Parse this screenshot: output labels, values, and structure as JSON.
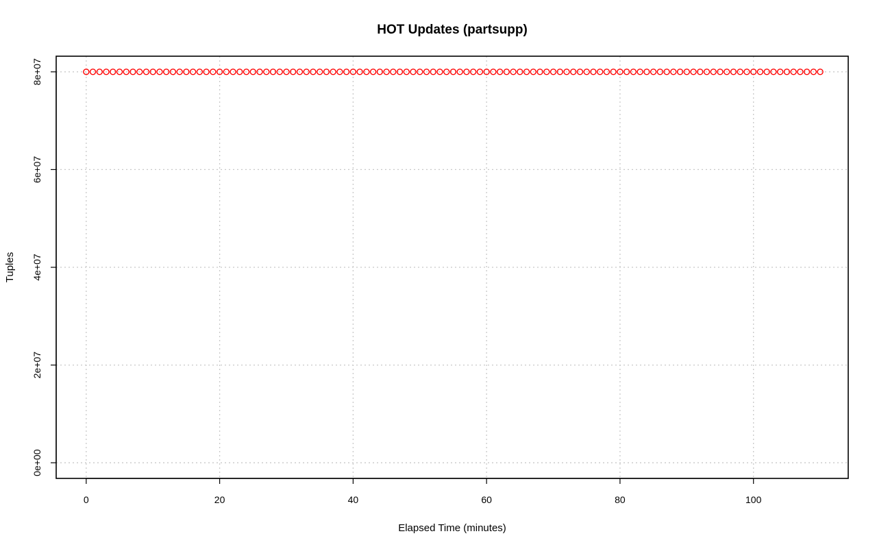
{
  "chart_data": {
    "type": "scatter",
    "title": "HOT Updates (partsupp)",
    "xlabel": "Elapsed Time (minutes)",
    "ylabel": "Tuples",
    "xlim": [
      -4.5,
      114.2
    ],
    "ylim": [
      -3200000,
      83200000
    ],
    "xticks": [
      0,
      20,
      40,
      60,
      80,
      100
    ],
    "xtick_labels": [
      "0",
      "20",
      "40",
      "60",
      "80",
      "100"
    ],
    "yticks": [
      0,
      20000000,
      40000000,
      60000000,
      80000000
    ],
    "ytick_labels": [
      "0e+00",
      "2e+07",
      "4e+07",
      "6e+07",
      "8e+07"
    ],
    "grid": true,
    "legend": "none",
    "marker": "open-circle",
    "color": "#ff0000",
    "series": [
      {
        "x": [
          0,
          1,
          2,
          3,
          4,
          5,
          6,
          7,
          8,
          9,
          10,
          11,
          12,
          13,
          14,
          15,
          16,
          17,
          18,
          19,
          20,
          21,
          22,
          23,
          24,
          25,
          26,
          27,
          28,
          29,
          30,
          31,
          32,
          33,
          34,
          35,
          36,
          37,
          38,
          39,
          40,
          41,
          42,
          43,
          44,
          45,
          46,
          47,
          48,
          49,
          50,
          51,
          52,
          53,
          54,
          55,
          56,
          57,
          58,
          59,
          60,
          61,
          62,
          63,
          64,
          65,
          66,
          67,
          68,
          69,
          70,
          71,
          72,
          73,
          74,
          75,
          76,
          77,
          78,
          79,
          80,
          81,
          82,
          83,
          84,
          85,
          86,
          87,
          88,
          89,
          90,
          91,
          92,
          93,
          94,
          95,
          96,
          97,
          98,
          99,
          100,
          101,
          102,
          103,
          104,
          105,
          106,
          107,
          108,
          109,
          110
        ],
        "y_constant": 80000000
      }
    ]
  }
}
